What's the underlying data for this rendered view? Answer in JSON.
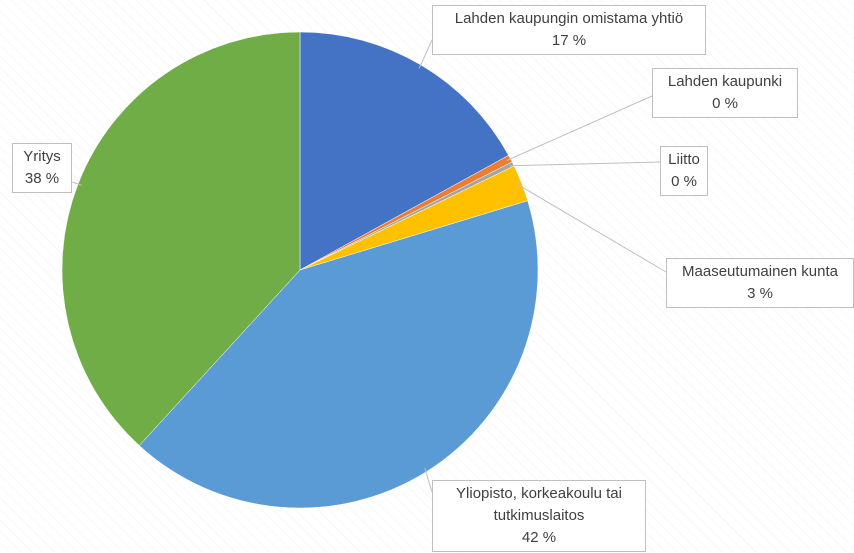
{
  "chart_data": {
    "type": "pie",
    "categories": [
      "Lahden kaupungin omistama yhtiö",
      "Lahden kaupunki",
      "Liitto",
      "Maaseutumainen kunta",
      "Yliopisto, korkeakoulu tai tutkimuslaitos",
      "Yritys"
    ],
    "values": [
      17,
      0.5,
      0.3,
      2.5,
      41.5,
      38.2
    ],
    "value_labels": [
      "17 %",
      "0 %",
      "0 %",
      "3 %",
      "42 %",
      "38 %"
    ],
    "colors": [
      "#4472c4",
      "#ed7d31",
      "#a5a5a5",
      "#ffc000",
      "#5b9bd5",
      "#70ad47"
    ]
  }
}
